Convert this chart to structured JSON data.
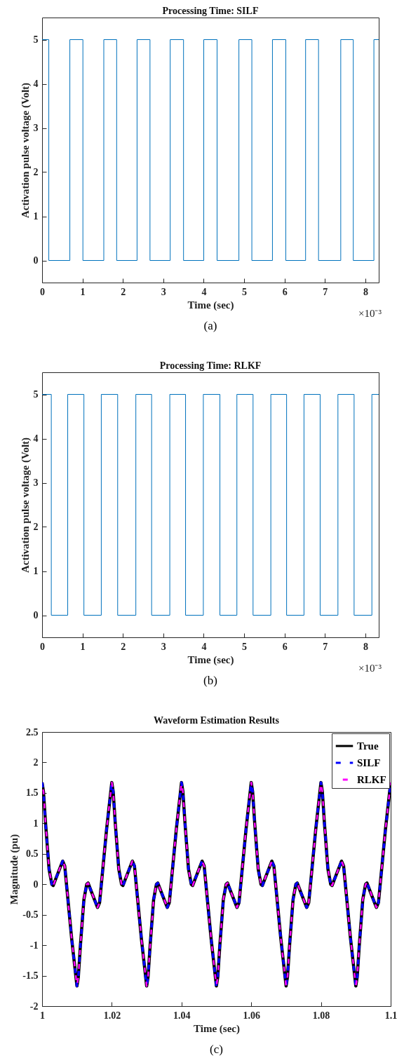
{
  "chart_data": [
    {
      "type": "step",
      "title": "Processing Time: SILF",
      "xlabel": "Time (sec)",
      "ylabel": "Activation pulse voltage (Volt)",
      "x": [
        0,
        0.166,
        0.687,
        1.01,
        1.527,
        1.845,
        2.35,
        2.67,
        3.17,
        3.5,
        4.0,
        4.33,
        4.87,
        5.19,
        5.7,
        6.03,
        6.52,
        6.84,
        7.39,
        7.7,
        8.21,
        8.33
      ],
      "series": [
        {
          "color": "#0072bd",
          "values": [
            5,
            0,
            5,
            0,
            5,
            0,
            5,
            0,
            5,
            0,
            5,
            0,
            5,
            0,
            5,
            0,
            5,
            0,
            5,
            0,
            5,
            5
          ]
        }
      ],
      "xlim": [
        0,
        8.33
      ],
      "xticks": [
        0,
        1,
        2,
        3,
        4,
        5,
        6,
        7,
        8
      ],
      "ylim": [
        -0.5,
        5.5
      ],
      "yticks": [
        0,
        1,
        2,
        3,
        4,
        5
      ],
      "annotations": [
        "×10⁻³",
        "(a)"
      ]
    },
    {
      "type": "step",
      "title": "Processing Time: RLKF",
      "xlabel": "Time (sec)",
      "ylabel": "Activation pulse voltage (Volt)",
      "x": [
        0,
        0.228,
        0.634,
        1.035,
        1.465,
        1.87,
        2.32,
        2.71,
        3.16,
        3.55,
        3.99,
        4.4,
        4.82,
        5.22,
        5.66,
        6.05,
        6.48,
        6.88,
        7.32,
        7.72,
        8.16,
        8.33
      ],
      "series": [
        {
          "color": "#0072bd",
          "values": [
            5,
            0,
            5,
            0,
            5,
            0,
            5,
            0,
            5,
            0,
            5,
            0,
            5,
            0,
            5,
            0,
            5,
            0,
            5,
            0,
            5,
            5
          ]
        }
      ],
      "xlim": [
        0,
        8.33
      ],
      "xticks": [
        0,
        1,
        2,
        3,
        4,
        5,
        6,
        7,
        8
      ],
      "ylim": [
        -0.5,
        5.5
      ],
      "yticks": [
        0,
        1,
        2,
        3,
        4,
        5
      ],
      "annotations": [
        "×10⁻³",
        "(b)"
      ]
    },
    {
      "type": "line",
      "title": "Waveform Estimation Results",
      "xlabel": "Time (sec)",
      "ylabel": "Magnitude (pu)",
      "x": [
        1,
        1.0004,
        1.001,
        1.002,
        1.0028,
        1.0032,
        1.004,
        1.0059,
        1.0065,
        1.007,
        1.0085,
        1.01,
        1.0104,
        1.011,
        1.012,
        1.0128,
        1.0132,
        1.014,
        1.0159,
        1.0165,
        1.017,
        1.0185,
        1.02,
        1.0204,
        1.021,
        1.022,
        1.0228,
        1.0232,
        1.024,
        1.0259,
        1.0265,
        1.027,
        1.0285,
        1.03,
        1.0304,
        1.031,
        1.032,
        1.0328,
        1.0332,
        1.034,
        1.0359,
        1.0365,
        1.037,
        1.0385,
        1.04,
        1.0404,
        1.041,
        1.042,
        1.0428,
        1.0432,
        1.044,
        1.0459,
        1.0465,
        1.047,
        1.0485,
        1.05,
        1.0504,
        1.051,
        1.052,
        1.0528,
        1.0532,
        1.054,
        1.0559,
        1.0565,
        1.057,
        1.0585,
        1.06,
        1.0604,
        1.061,
        1.062,
        1.0628,
        1.0632,
        1.064,
        1.0659,
        1.0665,
        1.067,
        1.0685,
        1.07,
        1.0704,
        1.071,
        1.072,
        1.0728,
        1.0732,
        1.074,
        1.0759,
        1.0765,
        1.077,
        1.0785,
        1.08,
        1.0804,
        1.081,
        1.082,
        1.0828,
        1.0832,
        1.084,
        1.0859,
        1.0865,
        1.087,
        1.0885,
        1.09,
        1.0904,
        1.091,
        1.092,
        1.0928,
        1.0932,
        1.094,
        1.0959,
        1.0965,
        1.097,
        1.0985,
        1.1
      ],
      "series": [
        {
          "name": "True",
          "color": "#000000",
          "line_style": "solid",
          "values": [
            1.67,
            1.52,
            1,
            0.25,
            0,
            -0.02,
            0.1,
            0.38,
            0.3,
            0,
            -0.9,
            -1.67,
            -1.52,
            -1,
            -0.25,
            0,
            0.02,
            -0.1,
            -0.38,
            -0.3,
            0,
            0.9,
            1.67,
            1.52,
            1,
            0.25,
            0,
            -0.02,
            0.1,
            0.38,
            0.3,
            0,
            -0.9,
            -1.67,
            -1.52,
            -1,
            -0.25,
            0,
            0.02,
            -0.1,
            -0.38,
            -0.3,
            0,
            0.9,
            1.67,
            1.52,
            1,
            0.25,
            0,
            -0.02,
            0.1,
            0.38,
            0.3,
            0,
            -0.9,
            -1.67,
            -1.52,
            -1,
            -0.25,
            0,
            0.02,
            -0.1,
            -0.38,
            -0.3,
            0,
            0.9,
            1.67,
            1.52,
            1,
            0.25,
            0,
            -0.02,
            0.1,
            0.38,
            0.3,
            0,
            -0.9,
            -1.67,
            -1.52,
            -1,
            -0.25,
            0,
            0.02,
            -0.1,
            -0.38,
            -0.3,
            0,
            0.9,
            1.67,
            1.52,
            1,
            0.25,
            0,
            -0.02,
            0.1,
            0.38,
            0.3,
            0,
            -0.9,
            -1.67,
            -1.52,
            -1,
            -0.25,
            0,
            0.02,
            -0.1,
            -0.38,
            -0.3,
            0,
            0.9,
            1.67
          ]
        },
        {
          "name": "SILF",
          "color": "#0000ff",
          "line_style": "dashed",
          "values": [
            1.67,
            1.52,
            1,
            0.25,
            0,
            -0.02,
            0.1,
            0.38,
            0.3,
            0,
            -0.9,
            -1.67,
            -1.52,
            -1,
            -0.25,
            0,
            0.02,
            -0.1,
            -0.38,
            -0.3,
            0,
            0.9,
            1.67,
            1.52,
            1,
            0.25,
            0,
            -0.02,
            0.1,
            0.38,
            0.3,
            0,
            -0.9,
            -1.67,
            -1.52,
            -1,
            -0.25,
            0,
            0.02,
            -0.1,
            -0.38,
            -0.3,
            0,
            0.9,
            1.67,
            1.52,
            1,
            0.25,
            0,
            -0.02,
            0.1,
            0.38,
            0.3,
            0,
            -0.9,
            -1.67,
            -1.52,
            -1,
            -0.25,
            0,
            0.02,
            -0.1,
            -0.38,
            -0.3,
            0,
            0.9,
            1.67,
            1.52,
            1,
            0.25,
            0,
            -0.02,
            0.1,
            0.38,
            0.3,
            0,
            -0.9,
            -1.67,
            -1.52,
            -1,
            -0.25,
            0,
            0.02,
            -0.1,
            -0.38,
            -0.3,
            0,
            0.9,
            1.67,
            1.52,
            1,
            0.25,
            0,
            -0.02,
            0.1,
            0.38,
            0.3,
            0,
            -0.9,
            -1.67,
            -1.52,
            -1,
            -0.25,
            0,
            0.02,
            -0.1,
            -0.38,
            -0.3,
            0,
            0.9,
            1.67
          ]
        },
        {
          "name": "RLKF",
          "color": "#ff00ff",
          "line_style": "dashed",
          "values": [
            1.67,
            1.52,
            1,
            0.25,
            0,
            -0.02,
            0.1,
            0.38,
            0.3,
            0,
            -0.9,
            -1.67,
            -1.52,
            -1,
            -0.25,
            0,
            0.02,
            -0.1,
            -0.38,
            -0.3,
            0,
            0.9,
            1.67,
            1.52,
            1,
            0.25,
            0,
            -0.02,
            0.1,
            0.38,
            0.3,
            0,
            -0.9,
            -1.67,
            -1.52,
            -1,
            -0.25,
            0,
            0.02,
            -0.1,
            -0.38,
            -0.3,
            0,
            0.9,
            1.67,
            1.52,
            1,
            0.25,
            0,
            -0.02,
            0.1,
            0.38,
            0.3,
            0,
            -0.9,
            -1.67,
            -1.52,
            -1,
            -0.25,
            0,
            0.02,
            -0.1,
            -0.38,
            -0.3,
            0,
            0.9,
            1.67,
            1.52,
            1,
            0.25,
            0,
            -0.02,
            0.1,
            0.38,
            0.3,
            0,
            -0.9,
            -1.67,
            -1.52,
            -1,
            -0.25,
            0,
            0.02,
            -0.1,
            -0.38,
            -0.3,
            0,
            0.9,
            1.67,
            1.52,
            1,
            0.25,
            0,
            -0.02,
            0.1,
            0.38,
            0.3,
            0,
            -0.9,
            -1.67,
            -1.52,
            -1,
            -0.25,
            0,
            0.02,
            -0.1,
            -0.38,
            -0.3,
            0,
            0.9,
            1.67
          ]
        }
      ],
      "xlim": [
        1,
        1.1
      ],
      "xticks": [
        1,
        1.02,
        1.04,
        1.06,
        1.08,
        1.1
      ],
      "ylim": [
        -2,
        2.5
      ],
      "yticks": [
        -2,
        -1.5,
        -1,
        -0.5,
        0,
        0.5,
        1,
        1.5,
        2,
        2.5
      ],
      "legend": "top right",
      "annotations": [
        "(c)"
      ]
    }
  ]
}
